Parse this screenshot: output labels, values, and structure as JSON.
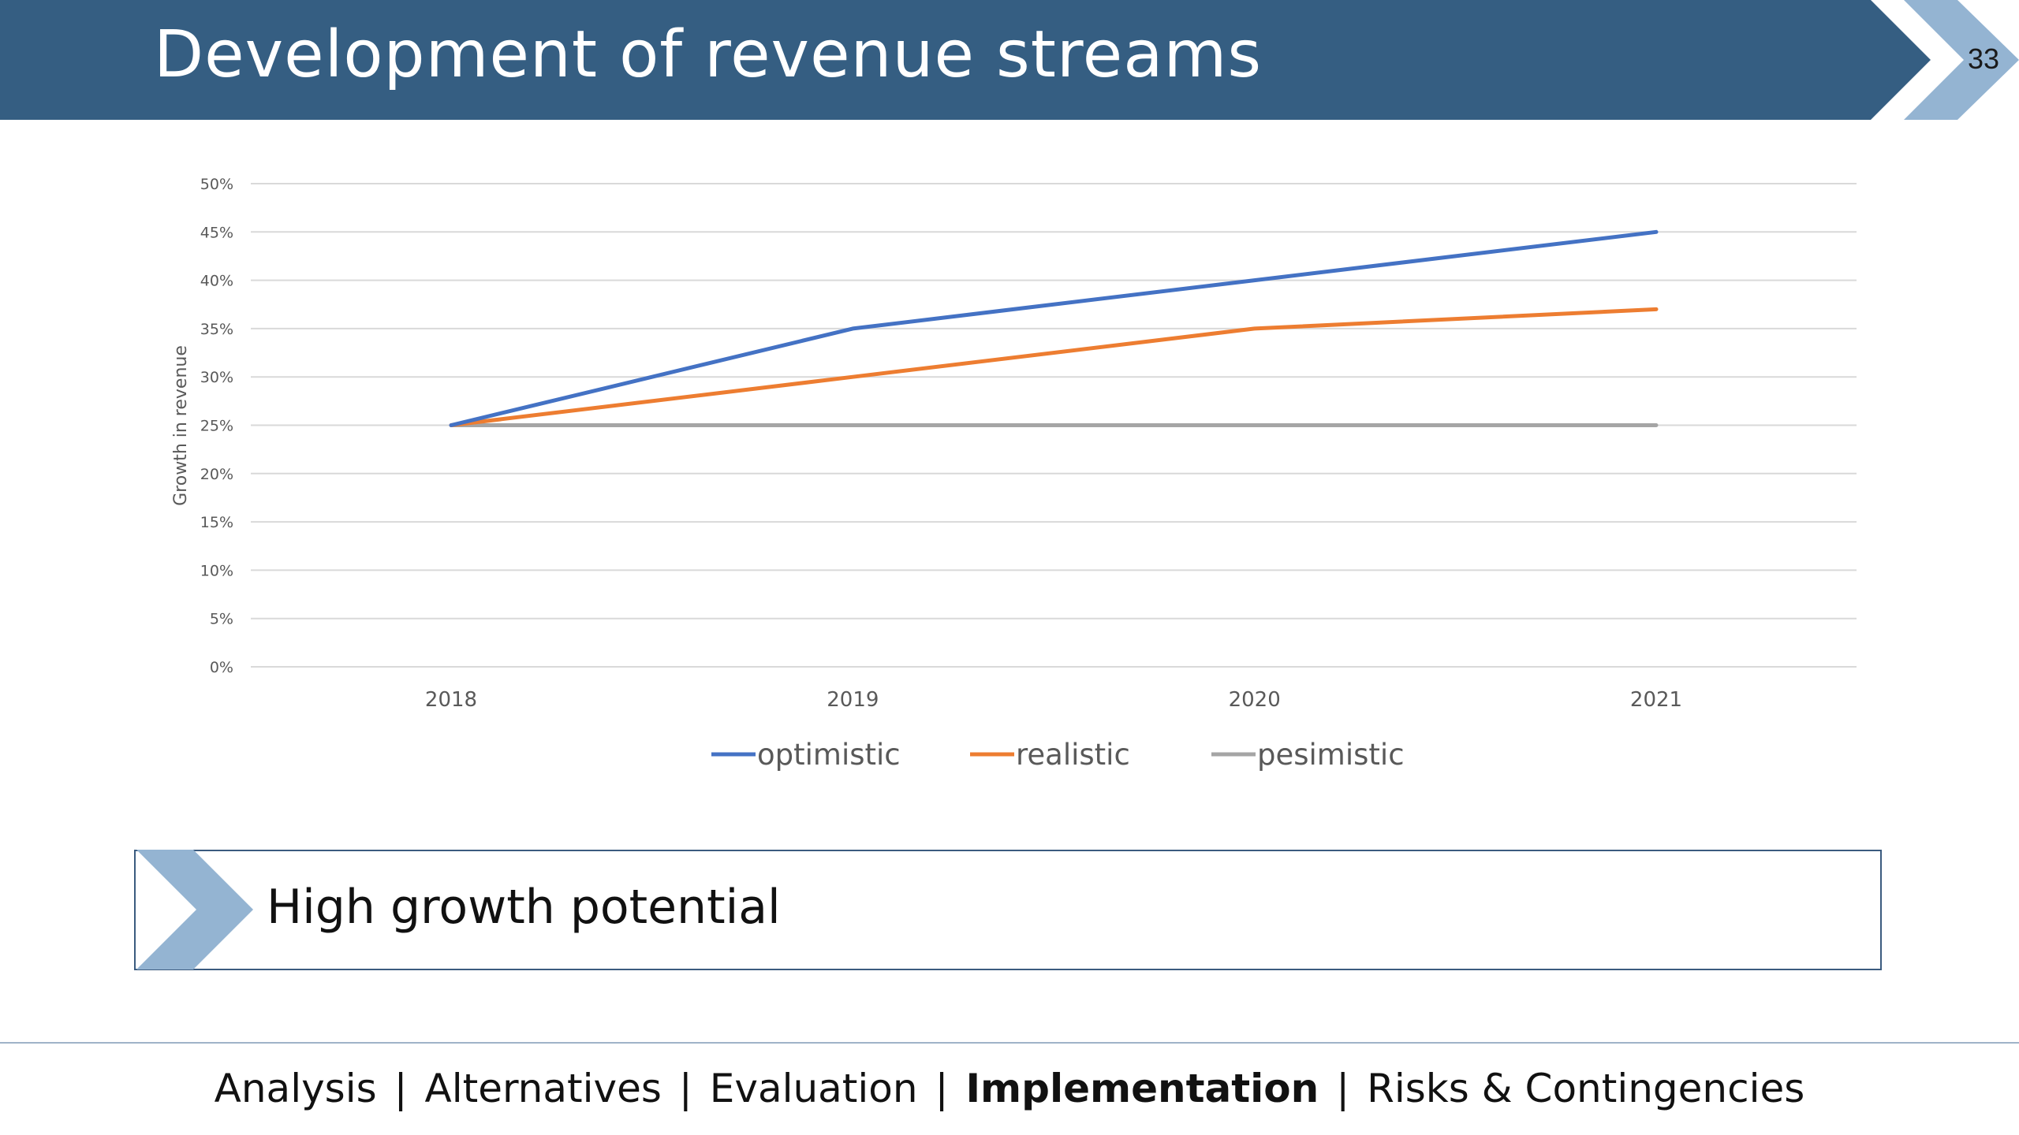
{
  "slide": {
    "title": "Development of revenue streams",
    "page_number": "33",
    "callout": "High growth potential",
    "footer_nav": [
      {
        "label": "Analysis",
        "active": false
      },
      {
        "label": "Alternatives",
        "active": false
      },
      {
        "label": "Evaluation",
        "active": false
      },
      {
        "label": "Implementation",
        "active": true
      },
      {
        "label": "Risks & Contingencies",
        "active": false
      }
    ],
    "footer_separator": "|"
  },
  "colors": {
    "banner": "#355e82",
    "chevron_light": "#94b4d2",
    "callout_border": "#3b5b7f"
  },
  "chart_data": {
    "type": "line",
    "title": "",
    "xlabel": "",
    "ylabel": "Growth in revenue",
    "categories": [
      "2018",
      "2019",
      "2020",
      "2021"
    ],
    "ylim": [
      0,
      0.5
    ],
    "ytick_step": 0.05,
    "ytick_format": "percent",
    "grid": true,
    "legend": "bottom-center",
    "series": [
      {
        "name": "optimistic",
        "color": "#4472c4",
        "values": [
          0.25,
          0.35,
          0.4,
          0.45
        ]
      },
      {
        "name": "realistic",
        "color": "#ed7d31",
        "values": [
          0.25,
          0.3,
          0.35,
          0.37
        ]
      },
      {
        "name": "pesimistic",
        "color": "#a5a5a5",
        "values": [
          0.25,
          0.25,
          0.25,
          0.25
        ]
      }
    ]
  }
}
